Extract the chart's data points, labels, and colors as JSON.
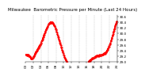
{
  "title": "Milwaukee  Barometric Pressure per Minute (Last 24 Hours)",
  "line_color": "#ff0000",
  "line_style": "--",
  "line_marker": ".",
  "marker_size": 1.2,
  "line_width": 0.5,
  "bg_color": "#ffffff",
  "grid_color": "#aaaaaa",
  "ylim": [
    29.0,
    30.65
  ],
  "yticks": [
    29.0,
    29.2,
    29.4,
    29.6,
    29.8,
    30.0,
    30.2,
    30.4,
    30.6
  ],
  "title_fontsize": 4.0,
  "tick_fontsize": 3.0,
  "num_points": 1440,
  "noise_seed": 42,
  "noise_scale": 0.012
}
